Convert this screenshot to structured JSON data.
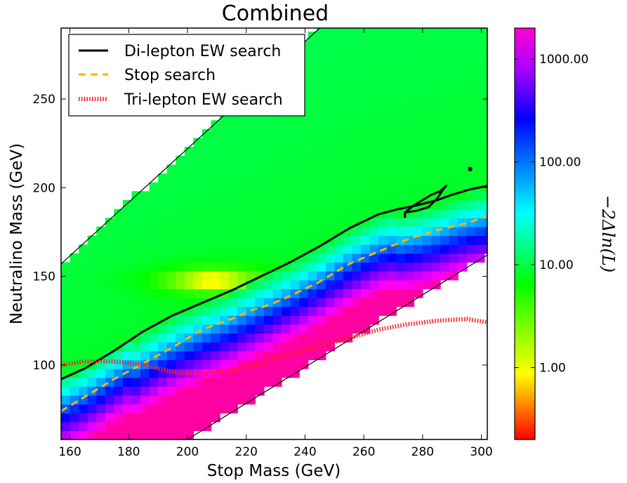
{
  "chart_data": {
    "type": "heatmap",
    "title": "Combined",
    "xlabel": "Stop Mass (GeV)",
    "ylabel": "Neutralino Mass (GeV)",
    "xlim": [
      157,
      302
    ],
    "ylim": [
      58,
      290
    ],
    "x_ticks": [
      "160",
      "180",
      "200",
      "220",
      "240",
      "260",
      "280",
      "300"
    ],
    "y_ticks": [
      "100",
      "150",
      "200",
      "250"
    ],
    "colorbar": {
      "label": "−2Δln(L)",
      "scale": "log",
      "range": [
        0.2,
        2000
      ],
      "ticks": [
        "1.00",
        "10.00",
        "100.00",
        "1000.00"
      ],
      "colormap": "gist_rainbow_r"
    },
    "region": {
      "lower_edge": [
        [
          200,
          58
        ],
        [
          302,
          162
        ]
      ],
      "upper_edge": [
        [
          157,
          157
        ],
        [
          245,
          290
        ]
      ]
    },
    "minimum": {
      "x": 208,
      "y": 145,
      "value": 0.2
    },
    "legend": {
      "position": "top-left",
      "entries": [
        {
          "label": "Di-lepton EW search",
          "color": "#000000",
          "style": "solid"
        },
        {
          "label": "Stop search",
          "color": "#ffb300",
          "style": "dashed"
        },
        {
          "label": "Tri-lepton EW search",
          "color": "#ff2020",
          "style": "dotted"
        }
      ]
    },
    "series": [
      {
        "name": "Di-lepton EW search",
        "x": [
          157,
          165,
          175,
          185,
          195,
          205,
          215,
          225,
          235,
          245,
          255,
          265,
          272,
          278,
          285,
          290,
          296,
          302
        ],
        "y": [
          92,
          98,
          108,
          119,
          128,
          135,
          142,
          150,
          158,
          167,
          177,
          185,
          188,
          190,
          193,
          196,
          199,
          201
        ]
      },
      {
        "name": "Stop search",
        "x": [
          157,
          165,
          175,
          185,
          195,
          205,
          215,
          222,
          228,
          235,
          245,
          255,
          265,
          275,
          285,
          295,
          302
        ],
        "y": [
          74,
          82,
          92,
          101,
          110,
          120,
          126,
          131,
          134,
          139,
          147,
          157,
          164,
          171,
          176,
          180,
          184
        ]
      },
      {
        "name": "Tri-lepton EW search",
        "x": [
          157,
          165,
          175,
          185,
          195,
          205,
          215,
          225,
          235,
          245,
          255,
          265,
          275,
          285,
          295,
          302
        ],
        "y": [
          100,
          102,
          102,
          100,
          96,
          95,
          97,
          101,
          106,
          111,
          115,
          120,
          123,
          125,
          126,
          124
        ]
      },
      {
        "name": "",
        "x": [
          274,
          278,
          282,
          285,
          287,
          288,
          286,
          283,
          280,
          277,
          274,
          274
        ],
        "y": [
          186,
          187,
          189,
          194,
          199,
          201,
          198,
          196,
          193,
          190,
          186,
          183
        ]
      },
      {
        "name": "",
        "x": [
          295.5,
          296.5,
          296.5,
          295.5
        ],
        "y": [
          210,
          210,
          211,
          211
        ]
      }
    ]
  }
}
